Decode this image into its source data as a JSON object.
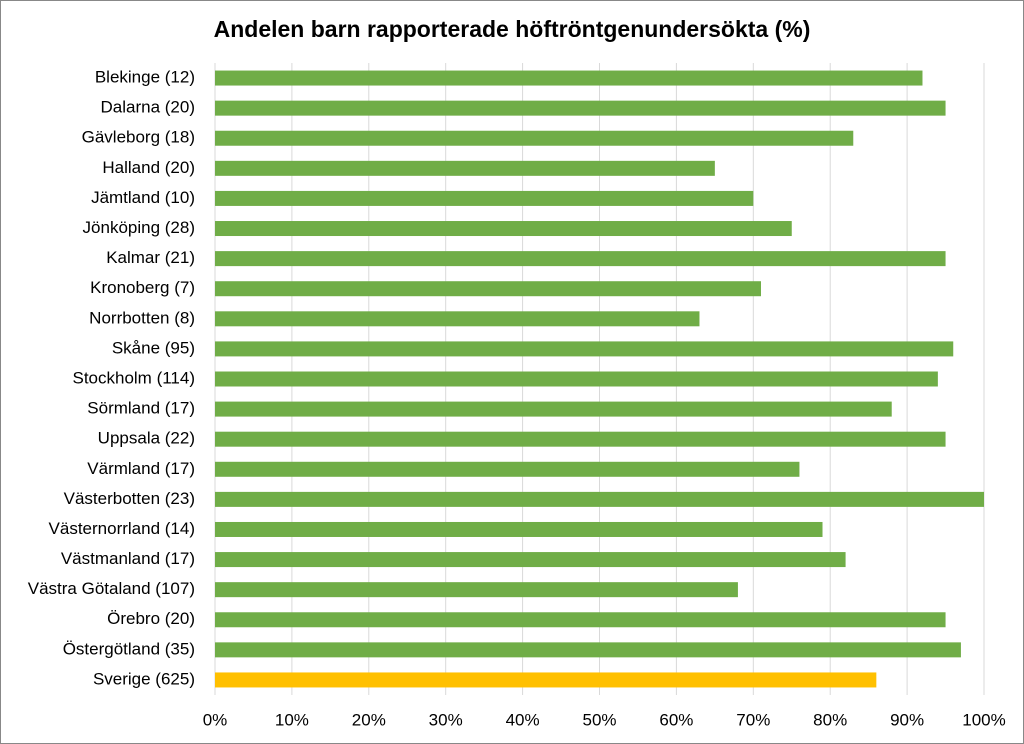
{
  "chart_data": {
    "type": "hbar",
    "title": "Andelen barn rapporterade höftröntgenundersökta (%)",
    "categories": [
      "Blekinge (12)",
      "Dalarna (20)",
      "Gävleborg (18)",
      "Halland (20)",
      "Jämtland (10)",
      "Jönköping (28)",
      "Kalmar (21)",
      "Kronoberg (7)",
      "Norrbotten (8)",
      "Skåne (95)",
      "Stockholm (114)",
      "Sörmland (17)",
      "Uppsala (22)",
      "Värmland (17)",
      "Västerbotten (23)",
      "Västernorrland (14)",
      "Västmanland (17)",
      "Västra Götaland (107)",
      "Örebro (20)",
      "Östergötland (35)",
      "Sverige (625)"
    ],
    "values": [
      92,
      95,
      83,
      65,
      70,
      75,
      95,
      71,
      63,
      96,
      94,
      88,
      95,
      76,
      100,
      79,
      82,
      68,
      95,
      97,
      86
    ],
    "colors": [
      "#70ad47",
      "#70ad47",
      "#70ad47",
      "#70ad47",
      "#70ad47",
      "#70ad47",
      "#70ad47",
      "#70ad47",
      "#70ad47",
      "#70ad47",
      "#70ad47",
      "#70ad47",
      "#70ad47",
      "#70ad47",
      "#70ad47",
      "#70ad47",
      "#70ad47",
      "#70ad47",
      "#70ad47",
      "#70ad47",
      "#ffc000"
    ],
    "xlim": [
      0,
      100
    ],
    "xticks": [
      {
        "value": 0,
        "label": "0%"
      },
      {
        "value": 10,
        "label": "10%"
      },
      {
        "value": 20,
        "label": "20%"
      },
      {
        "value": 30,
        "label": "30%"
      },
      {
        "value": 40,
        "label": "40%"
      },
      {
        "value": 50,
        "label": "50%"
      },
      {
        "value": 60,
        "label": "60%"
      },
      {
        "value": 70,
        "label": "70%"
      },
      {
        "value": 80,
        "label": "80%"
      },
      {
        "value": 90,
        "label": "90%"
      },
      {
        "value": 100,
        "label": "100%"
      }
    ],
    "grid": true
  }
}
